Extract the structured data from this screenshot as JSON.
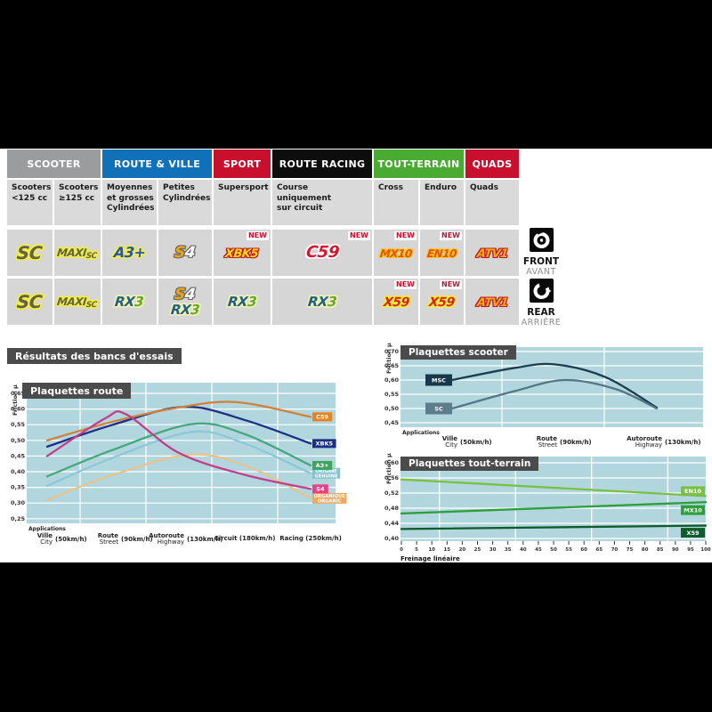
{
  "section_title": "Résultats des bancs d'essais",
  "table": {
    "new_label": "NEW",
    "groups": [
      {
        "label": "SCOOTER",
        "color": "#9a9c9e",
        "span": 2
      },
      {
        "label": "ROUTE & VILLE",
        "color": "#1071b8",
        "span": 2
      },
      {
        "label": "SPORT",
        "color": "#c8102e",
        "span": 1
      },
      {
        "label": "ROUTE RACING",
        "color": "#0d0d0d",
        "span": 1
      },
      {
        "label": "TOUT-TERRAIN",
        "color": "#4aab33",
        "span": 2
      },
      {
        "label": "QUADS",
        "color": "#c8102e",
        "span": 1
      }
    ],
    "subheaders": [
      "Scooters\n<125 cc",
      "Scooters\n≥125 cc",
      "Moyennes\net grosses\nCylindrées",
      "Petites\nCylindrées",
      "Supersport",
      "Course\nuniquement\nsur circuit",
      "Cross",
      "Enduro",
      "Quads"
    ],
    "logo_defs": {
      "SC": {
        "o": "o-y",
        "parts": [
          {
            "t": "SC",
            "c": "p-sc"
          }
        ]
      },
      "MAXISC": {
        "o": "o-y",
        "parts": [
          {
            "t": "MAXI",
            "c": "p-maxi"
          },
          {
            "t": "SC",
            "c": "p-msub"
          }
        ]
      },
      "A3": {
        "o": "o-y",
        "parts": [
          {
            "t": "A3+",
            "c": "p-a3"
          }
        ]
      },
      "S4": {
        "o": "o-g",
        "parts": [
          {
            "t": "S",
            "c": "p-s4s"
          },
          {
            "t": "4",
            "c": "p-s44"
          }
        ]
      },
      "XBK5": {
        "o": "o-r",
        "parts": [
          {
            "t": "XBK5",
            "c": "p-xbk"
          }
        ]
      },
      "C59": {
        "o": "o-w",
        "parts": [
          {
            "t": "C59",
            "c": "p-c59"
          }
        ]
      },
      "MX10": {
        "o": "o-oy",
        "parts": [
          {
            "t": "MX10",
            "c": "p-mx"
          }
        ]
      },
      "EN10": {
        "o": "o-oy",
        "parts": [
          {
            "t": "EN10",
            "c": "p-mx"
          }
        ]
      },
      "ATV1": {
        "o": "o-r",
        "parts": [
          {
            "t": "ATV1",
            "c": "p-atv"
          }
        ]
      },
      "RX3": {
        "o": "o-py",
        "parts": [
          {
            "t": "RX",
            "c": "p-rx"
          },
          {
            "t": "3",
            "c": "p-r3"
          }
        ]
      },
      "X59": {
        "o": "o-y",
        "parts": [
          {
            "t": "X59",
            "c": "p-x59"
          }
        ]
      }
    },
    "rows": [
      {
        "side": "front",
        "cells": [
          {
            "logos": [
              "SC"
            ]
          },
          {
            "logos": [
              "MAXISC"
            ]
          },
          {
            "logos": [
              "A3"
            ]
          },
          {
            "logos": [
              "S4"
            ]
          },
          {
            "logos": [
              "XBK5"
            ],
            "new": true
          },
          {
            "logos": [
              "C59"
            ],
            "new": true
          },
          {
            "logos": [
              "MX10"
            ],
            "new": true
          },
          {
            "logos": [
              "EN10"
            ],
            "new": true
          },
          {
            "logos": [
              "ATV1"
            ]
          }
        ]
      },
      {
        "side": "rear",
        "cells": [
          {
            "logos": [
              "SC"
            ]
          },
          {
            "logos": [
              "MAXISC"
            ]
          },
          {
            "logos": [
              "RX3"
            ]
          },
          {
            "logos": [
              "S4",
              "RX3"
            ],
            "stack": true
          },
          {
            "logos": [
              "RX3"
            ]
          },
          {
            "logos": [
              "RX3"
            ]
          },
          {
            "logos": [
              "X59"
            ],
            "new": true
          },
          {
            "logos": [
              "X59"
            ],
            "new": true
          },
          {
            "logos": [
              "ATV1"
            ]
          }
        ]
      }
    ],
    "front_rear": [
      {
        "en": "FRONT",
        "fr": "AVANT"
      },
      {
        "en": "REAR",
        "fr": "ARRIÈRE"
      }
    ]
  },
  "chart_data": [
    {
      "id": "route",
      "type": "line",
      "title": "Plaquettes route",
      "ylabel": "Friction µ",
      "footnote": "Applications",
      "ylim": [
        0.25,
        0.68
      ],
      "yticks": [
        0.65,
        0.6,
        0.55,
        0.5,
        0.45,
        0.4,
        0.35,
        0.3,
        0.25
      ],
      "grid": true,
      "points_format": "[fraction_across_x_span, friction_mu]",
      "categories": [
        {
          "fr": "Ville",
          "en": "City",
          "speed": "(50km/h)"
        },
        {
          "fr": "Route",
          "en": "Street",
          "speed": "(90km/h)"
        },
        {
          "fr": "Autoroute",
          "en": "Highway",
          "speed": "(130km/h)"
        },
        {
          "fr": "Circuit",
          "en": "",
          "speed": "(180km/h)"
        },
        {
          "fr": "Racing",
          "en": "",
          "speed": "(250km/h)"
        }
      ],
      "series": [
        {
          "name": "ORGANIQUE",
          "label": [
            "ORGANIQUE",
            "ORGANIC"
          ],
          "color": "#e6c48e",
          "label_bg": "#f0a95a",
          "points": [
            [
              0,
              0.31
            ],
            [
              0.25,
              0.39
            ],
            [
              0.55,
              0.455
            ],
            [
              0.78,
              0.41
            ],
            [
              1,
              0.315
            ]
          ]
        },
        {
          "name": "ORIGINE",
          "label": [
            "ORIGINE",
            "GENUINE"
          ],
          "color": "#8cc8d8",
          "label_bg": "#7fc3d4",
          "points": [
            [
              0,
              0.355
            ],
            [
              0.25,
              0.445
            ],
            [
              0.55,
              0.527
            ],
            [
              0.75,
              0.49
            ],
            [
              1,
              0.395
            ]
          ]
        },
        {
          "name": "A3+",
          "label": [
            "A3+"
          ],
          "color": "#46a87c",
          "label_bg": "#3fa35c",
          "points": [
            [
              0,
              0.385
            ],
            [
              0.25,
              0.47
            ],
            [
              0.55,
              0.552
            ],
            [
              0.75,
              0.52
            ],
            [
              1,
              0.42
            ]
          ]
        },
        {
          "name": "XBK5",
          "label": [
            "XBK5"
          ],
          "color": "#1c2e86",
          "label_bg": "#1c2e86",
          "points": [
            [
              0,
              0.48
            ],
            [
              0.25,
              0.55
            ],
            [
              0.52,
              0.607
            ],
            [
              0.75,
              0.565
            ],
            [
              1,
              0.49
            ]
          ]
        },
        {
          "name": "C59",
          "label": [
            "C59"
          ],
          "color": "#d2813a",
          "label_bg": "#e8821e",
          "points": [
            [
              0,
              0.5
            ],
            [
              0.25,
              0.56
            ],
            [
              0.5,
              0.605
            ],
            [
              0.72,
              0.622
            ],
            [
              1,
              0.575
            ]
          ]
        },
        {
          "name": "S4",
          "label": [
            "S4"
          ],
          "color": "#c23e8c",
          "label_bg": "#e83e8c",
          "points": [
            [
              0,
              0.45
            ],
            [
              0.22,
              0.57
            ],
            [
              0.3,
              0.583
            ],
            [
              0.5,
              0.46
            ],
            [
              0.75,
              0.39
            ],
            [
              1,
              0.345
            ]
          ]
        }
      ]
    },
    {
      "id": "scooter",
      "type": "line",
      "title": "Plaquettes scooter",
      "ylabel": "Friction µ",
      "footnote": "Applications",
      "ylim": [
        0.45,
        0.72
      ],
      "yticks": [
        0.7,
        0.65,
        0.6,
        0.55,
        0.5,
        0.45
      ],
      "grid": true,
      "points_format": "[fraction_across_x_span, friction_mu]",
      "categories": [
        {
          "fr": "Ville",
          "en": "City",
          "speed": "(50km/h)"
        },
        {
          "fr": "Route",
          "en": "Street",
          "speed": "(90km/h)"
        },
        {
          "fr": "Autoroute",
          "en": "Highway",
          "speed": "(130km/h)"
        }
      ],
      "series": [
        {
          "name": "MSC",
          "label": [
            "MSC"
          ],
          "color": "#1b3d50",
          "label_bg": "#16384a",
          "points": [
            [
              0,
              0.6
            ],
            [
              0.3,
              0.642
            ],
            [
              0.5,
              0.655
            ],
            [
              0.75,
              0.61
            ],
            [
              1,
              0.503
            ]
          ]
        },
        {
          "name": "SC",
          "label": [
            "SC"
          ],
          "color": "#547687",
          "label_bg": "#5e7d8a",
          "points": [
            [
              0,
              0.5
            ],
            [
              0.3,
              0.56
            ],
            [
              0.55,
              0.6
            ],
            [
              0.8,
              0.568
            ],
            [
              1,
              0.5
            ]
          ]
        }
      ]
    },
    {
      "id": "tout-terrain",
      "type": "line",
      "title": "Plaquettes tout-terrain",
      "ylabel": "Friction µ",
      "xlabel": "Freinage linéaire",
      "ylim": [
        0.4,
        0.62
      ],
      "xlim": [
        0,
        100
      ],
      "xstep": 5,
      "yticks": [
        0.6,
        0.56,
        0.52,
        0.48,
        0.44,
        0.4
      ],
      "grid": true,
      "points_format": "[x_freinage, friction_mu]",
      "series": [
        {
          "name": "EN10",
          "label": [
            "EN10"
          ],
          "color": "#79c143",
          "label_bg": "#79c143",
          "points": [
            [
              0,
              0.556
            ],
            [
              100,
              0.512
            ]
          ]
        },
        {
          "name": "MX10",
          "label": [
            "MX10"
          ],
          "color": "#2f9e3d",
          "label_bg": "#2f9e3d",
          "points": [
            [
              0,
              0.466
            ],
            [
              100,
              0.496
            ]
          ]
        },
        {
          "name": "X59",
          "label": [
            "X59"
          ],
          "color": "#0f5b2b",
          "label_bg": "#0f5b2b",
          "points": [
            [
              0,
              0.425
            ],
            [
              100,
              0.434
            ]
          ]
        }
      ]
    }
  ]
}
